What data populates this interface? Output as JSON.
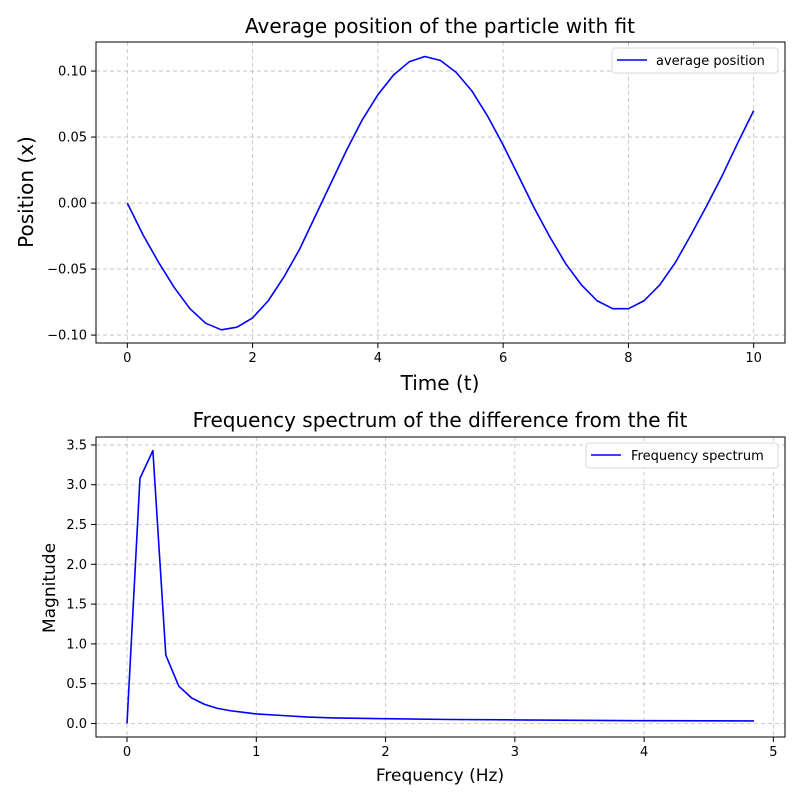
{
  "chart_data": [
    {
      "type": "line",
      "title": "Average position of the particle with fit",
      "xlabel": "Time (t)",
      "ylabel": "Position (x)",
      "xlim": [
        -0.5,
        10.5
      ],
      "ylim": [
        -0.106,
        0.122
      ],
      "xticks": [
        0,
        2,
        4,
        6,
        8,
        10
      ],
      "xtick_labels": [
        "0",
        "2",
        "4",
        "6",
        "8",
        "10"
      ],
      "yticks": [
        -0.1,
        -0.05,
        0.0,
        0.05,
        0.1
      ],
      "ytick_labels": [
        "−0.10",
        "−0.05",
        "0.00",
        "0.05",
        "0.10"
      ],
      "grid": true,
      "legend_position": "upper right",
      "series": [
        {
          "name": "average position",
          "color": "#0000ff",
          "x": [
            0,
            0.25,
            0.5,
            0.75,
            1.0,
            1.25,
            1.5,
            1.75,
            2.0,
            2.25,
            2.5,
            2.75,
            3.0,
            3.25,
            3.5,
            3.75,
            4.0,
            4.25,
            4.5,
            4.75,
            5.0,
            5.25,
            5.5,
            5.75,
            6.0,
            6.25,
            6.5,
            6.75,
            7.0,
            7.25,
            7.5,
            7.75,
            8.0,
            8.25,
            8.5,
            8.75,
            9.0,
            9.25,
            9.5,
            9.75,
            10.0
          ],
          "y": [
            0.0,
            -0.024,
            -0.045,
            -0.064,
            -0.08,
            -0.091,
            -0.096,
            -0.094,
            -0.087,
            -0.074,
            -0.056,
            -0.035,
            -0.01,
            0.015,
            0.04,
            0.063,
            0.082,
            0.097,
            0.107,
            0.111,
            0.108,
            0.099,
            0.085,
            0.066,
            0.044,
            0.02,
            -0.004,
            -0.026,
            -0.046,
            -0.062,
            -0.074,
            -0.08,
            -0.08,
            -0.074,
            -0.062,
            -0.045,
            -0.024,
            -0.002,
            0.021,
            0.046,
            0.07
          ]
        }
      ]
    },
    {
      "type": "line",
      "title": "Frequency spectrum of the difference from the fit",
      "xlabel": "Frequency (Hz)",
      "ylabel": "Magnitude",
      "xlim": [
        -0.24,
        5.09
      ],
      "ylim": [
        -0.17,
        3.6
      ],
      "xticks": [
        0,
        1,
        2,
        3,
        4,
        5
      ],
      "xtick_labels": [
        "0",
        "1",
        "2",
        "3",
        "4",
        "5"
      ],
      "yticks": [
        0.0,
        0.5,
        1.0,
        1.5,
        2.0,
        2.5,
        3.0,
        3.5
      ],
      "ytick_labels": [
        "0.0",
        "0.5",
        "1.0",
        "1.5",
        "2.0",
        "2.5",
        "3.0",
        "3.5"
      ],
      "grid": true,
      "legend_position": "upper right",
      "series": [
        {
          "name": "Frequency spectrum",
          "color": "#0000ff",
          "x": [
            0,
            0.1,
            0.2,
            0.3,
            0.4,
            0.5,
            0.6,
            0.7,
            0.8,
            0.9,
            1.0,
            1.2,
            1.4,
            1.6,
            1.8,
            2.0,
            2.5,
            3.0,
            3.5,
            4.0,
            4.5,
            4.85
          ],
          "y": [
            0.0,
            3.08,
            3.43,
            0.86,
            0.47,
            0.32,
            0.24,
            0.19,
            0.16,
            0.14,
            0.12,
            0.1,
            0.08,
            0.07,
            0.065,
            0.06,
            0.05,
            0.045,
            0.04,
            0.035,
            0.033,
            0.032
          ]
        }
      ]
    }
  ]
}
